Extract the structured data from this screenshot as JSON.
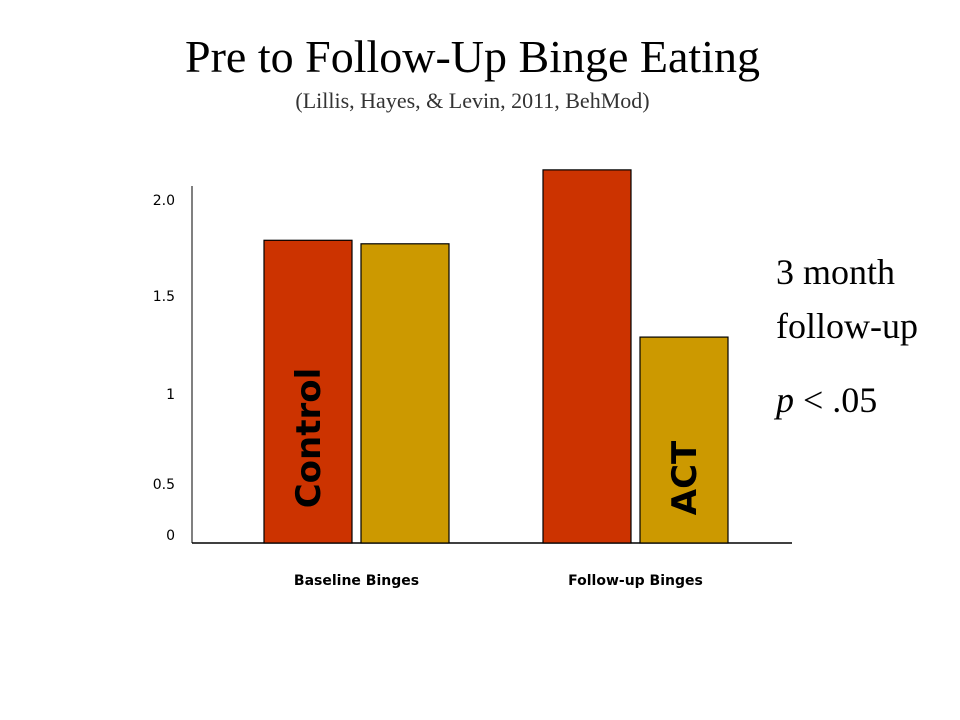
{
  "chart_data": {
    "type": "bar",
    "title": "Pre to Follow-Up Binge Eating",
    "subtitle": "(Lillis, Hayes, & Levin, 2011, BehMod)",
    "categories": [
      "Baseline Binges",
      "Follow-up Binges"
    ],
    "series": [
      {
        "name": "Control",
        "values": [
          1.72,
          2.12
        ],
        "color": "#cc3300"
      },
      {
        "name": "ACT",
        "values": [
          1.7,
          1.17
        ],
        "color": "#cc9900"
      }
    ],
    "yticks": [
      "0",
      "0.5",
      "1",
      "1.5",
      "2.0"
    ],
    "ytick_values": [
      0,
      0.5,
      1,
      1.5,
      2.0
    ],
    "ylim": [
      0,
      2.2
    ],
    "bar_labels": [
      {
        "text": "Control",
        "series": 0,
        "category": 0
      },
      {
        "text": "ACT",
        "series": 1,
        "category": 1
      }
    ]
  },
  "annotation": {
    "line1": "3 month",
    "line2": "follow-up",
    "p_symbol": "p",
    "p_rest": " < .05"
  }
}
